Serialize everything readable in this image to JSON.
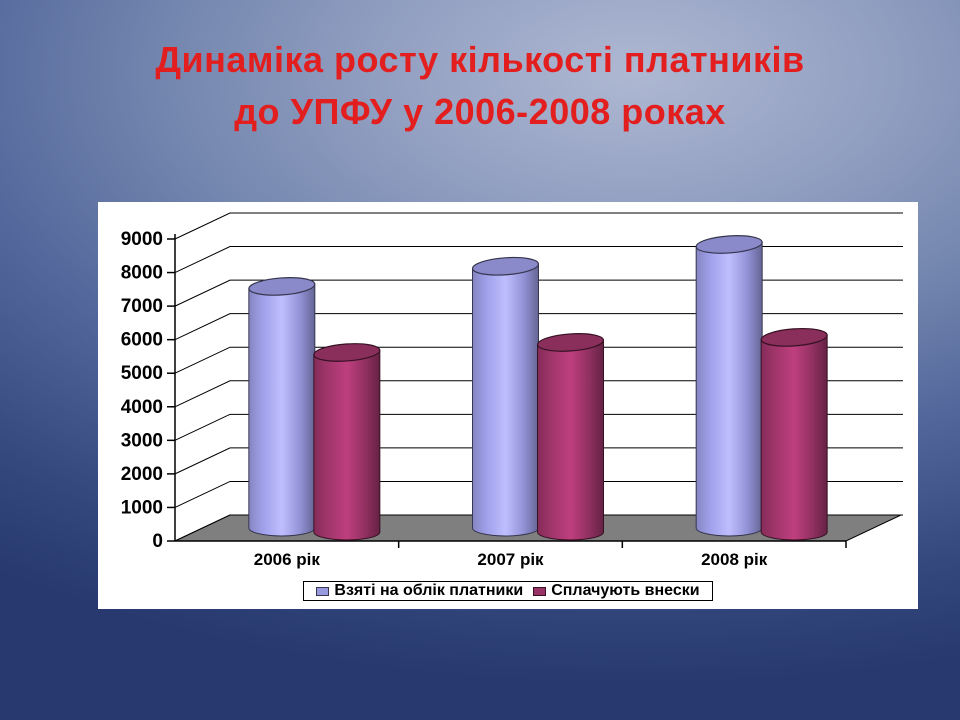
{
  "slide": {
    "title_line1": "Динаміка росту кількості платників",
    "title_line2": "до УПФУ у 2006-2008 роках",
    "title_color": "#e31e1e"
  },
  "chart_data": {
    "type": "bar",
    "style": "3d-cylinder",
    "title": "",
    "xlabel": "",
    "ylabel": "",
    "categories": [
      "2006 рік",
      "2007 рік",
      "2008 рік"
    ],
    "series": [
      {
        "name": "Взяті на облік платники",
        "color": "#9999e0",
        "values": [
          7200,
          7800,
          8450
        ]
      },
      {
        "name": "Сплачують внески",
        "color": "#993366",
        "values": [
          5350,
          5650,
          5800
        ]
      }
    ],
    "ylim": [
      0,
      9000
    ],
    "ytick_step": 1000,
    "grid": true,
    "legend_position": "bottom",
    "plot_area_bg": "#ffffff",
    "floor_color": "#7f7f7f",
    "gridline_color": "#000000",
    "text_color": "#000000"
  }
}
